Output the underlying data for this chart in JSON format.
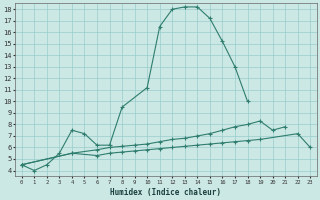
{
  "xlabel": "Humidex (Indice chaleur)",
  "background_color": "#cce8e4",
  "grid_color": "#99cccc",
  "line_color": "#2e7d6e",
  "xlim": [
    -0.5,
    23.5
  ],
  "ylim": [
    3.5,
    18.5
  ],
  "yticks": [
    4,
    5,
    6,
    7,
    8,
    9,
    10,
    11,
    12,
    13,
    14,
    15,
    16,
    17,
    18
  ],
  "xticks": [
    0,
    1,
    2,
    3,
    4,
    5,
    6,
    7,
    8,
    9,
    10,
    11,
    12,
    13,
    14,
    15,
    16,
    17,
    18,
    19,
    20,
    21,
    22,
    23
  ],
  "s1x": [
    0,
    1,
    2,
    3,
    4,
    5,
    6,
    7,
    8,
    10,
    11,
    12,
    13,
    14,
    15,
    16,
    17,
    18
  ],
  "s1y": [
    4.5,
    4.0,
    4.5,
    5.5,
    7.5,
    7.2,
    6.2,
    6.2,
    9.5,
    11.2,
    16.5,
    18.0,
    18.2,
    18.2,
    17.2,
    15.2,
    13.0,
    10.0
  ],
  "s2x": [
    0,
    4,
    6,
    7,
    8,
    9,
    10,
    11,
    12,
    13,
    14,
    15,
    16,
    17,
    18,
    19,
    20,
    21
  ],
  "s2y": [
    4.5,
    5.5,
    5.8,
    6.0,
    6.1,
    6.2,
    6.3,
    6.5,
    6.7,
    6.8,
    7.0,
    7.2,
    7.5,
    7.8,
    8.0,
    8.3,
    7.5,
    7.8
  ],
  "s3x": [
    0,
    4,
    6,
    7,
    8,
    9,
    10,
    11,
    12,
    13,
    14,
    15,
    16,
    17,
    18,
    19,
    22,
    23
  ],
  "s3y": [
    4.5,
    5.5,
    5.3,
    5.5,
    5.6,
    5.7,
    5.8,
    5.9,
    6.0,
    6.1,
    6.2,
    6.3,
    6.4,
    6.5,
    6.6,
    6.7,
    7.2,
    6.0
  ]
}
